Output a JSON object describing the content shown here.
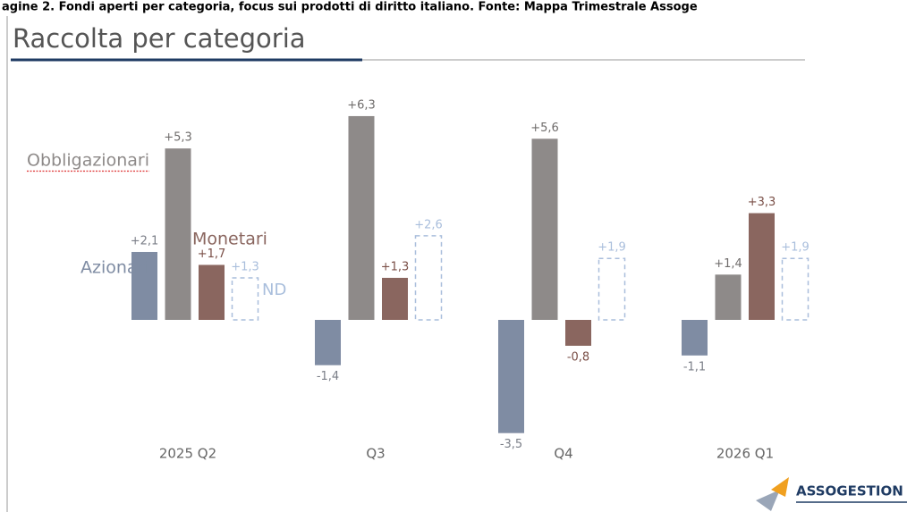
{
  "caption": "agine 2. Fondi aperti per categoria, focus sui prodotti di diritto italiano. Fonte: Mappa Trimestrale Assoge",
  "logo": "ASSOGESTION",
  "chart_data": {
    "type": "bar",
    "title": "Raccolta per categoria",
    "categories": [
      "2025 Q2",
      "Q3",
      "Q4",
      "2026 Q1"
    ],
    "series": [
      {
        "name": "Azionari",
        "color": "#7f8ca3",
        "values": [
          2.1,
          -1.4,
          -3.5,
          -1.1
        ],
        "value_labels": [
          "+2,1",
          "-1,4",
          "-3,5",
          "-1,1"
        ]
      },
      {
        "name": "Obbligazionari",
        "color": "#8e8a89",
        "values": [
          5.3,
          6.3,
          5.6,
          1.4
        ],
        "value_labels": [
          "+5,3",
          "+6,3",
          "+5,6",
          "+1,4"
        ]
      },
      {
        "name": "Monetari",
        "color": "#8a665f",
        "values": [
          1.7,
          1.3,
          -0.8,
          3.3
        ],
        "value_labels": [
          "+1,7",
          "+1,3",
          "-0,8",
          "+3,3"
        ]
      },
      {
        "name": "ND",
        "color": "#a9bedc",
        "dashed": true,
        "values": [
          1.3,
          2.6,
          1.9,
          1.9
        ],
        "value_labels": [
          "+1,3",
          "+2,6",
          "+1,9",
          "+1,9"
        ]
      }
    ]
  }
}
